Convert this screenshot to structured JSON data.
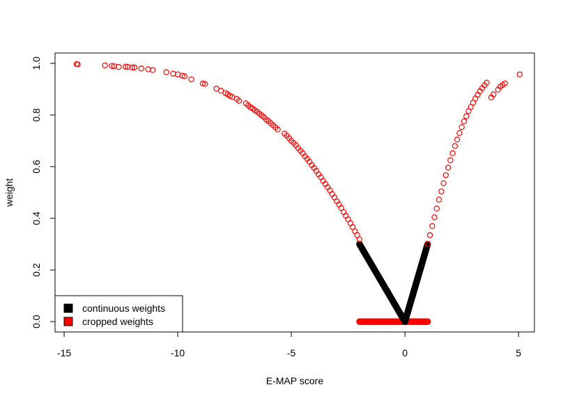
{
  "chart_data": {
    "type": "scatter",
    "title": "",
    "xlabel": "E-MAP score",
    "ylabel": "weight",
    "xlim": [
      -15.4,
      5.7
    ],
    "ylim": [
      -0.04,
      1.04
    ],
    "xticks": [
      -15,
      -10,
      -5,
      0,
      5
    ],
    "xtick_labels": [
      "-15",
      "-10",
      "-5",
      "0",
      "5"
    ],
    "yticks": [
      0.0,
      0.2,
      0.4,
      0.6,
      0.8,
      1.0
    ],
    "ytick_labels": [
      "0.0",
      "0.2",
      "0.4",
      "0.6",
      "0.8",
      "1.0"
    ],
    "legend_position": "bottom-left",
    "grid": false,
    "series": [
      {
        "name": "continuous weights",
        "color": "#000000",
        "marker": "dense-filled",
        "segments": [
          {
            "x": [
              -2.0,
              0.0
            ],
            "y": [
              0.3,
              0.0
            ]
          },
          {
            "x": [
              0.0,
              1.0
            ],
            "y": [
              0.0,
              0.3
            ]
          }
        ]
      },
      {
        "name": "cropped weights",
        "color": "#ff0000",
        "marker": "open-circle",
        "x": [
          -14.45,
          -14.4,
          -13.2,
          -12.9,
          -12.8,
          -12.6,
          -12.3,
          -12.2,
          -12.0,
          -11.9,
          -11.6,
          -11.3,
          -11.1,
          -10.5,
          -10.2,
          -10.0,
          -9.8,
          -9.7,
          -9.4,
          -8.9,
          -8.8,
          -8.3,
          -8.1,
          -7.9,
          -7.8,
          -7.7,
          -7.6,
          -7.4,
          -7.3,
          -7.0,
          -6.9,
          -6.8,
          -6.7,
          -6.6,
          -6.5,
          -6.4,
          -6.3,
          -6.2,
          -6.1,
          -6.0,
          -5.9,
          -5.8,
          -5.7,
          -5.6,
          -5.3,
          -5.2,
          -5.1,
          -5.0,
          -4.9,
          -4.8,
          -4.7,
          -4.6,
          -4.5,
          -4.4,
          -4.3,
          -4.2,
          -4.1,
          -4.0,
          -3.9,
          -3.8,
          -3.7,
          -3.6,
          -3.5,
          -3.4,
          -3.3,
          -3.2,
          -3.1,
          -3.0,
          -2.9,
          -2.8,
          -2.7,
          -2.6,
          -2.5,
          -2.4,
          -2.3,
          -2.2,
          -2.1,
          -2.0,
          1.0,
          1.1,
          1.2,
          1.3,
          1.4,
          1.5,
          1.6,
          1.7,
          1.8,
          1.9,
          2.0,
          2.1,
          2.2,
          2.3,
          2.4,
          2.5,
          2.6,
          2.7,
          2.8,
          2.9,
          3.0,
          3.1,
          3.2,
          3.3,
          3.4,
          3.5,
          3.6,
          3.8,
          3.9,
          4.1,
          4.2,
          4.3,
          4.4,
          5.05
        ],
        "y": [
          0.997,
          0.996,
          0.992,
          0.99,
          0.989,
          0.986,
          0.987,
          0.986,
          0.984,
          0.984,
          0.98,
          0.977,
          0.974,
          0.966,
          0.96,
          0.957,
          0.952,
          0.95,
          0.938,
          0.922,
          0.92,
          0.902,
          0.894,
          0.885,
          0.88,
          0.874,
          0.87,
          0.862,
          0.855,
          0.845,
          0.838,
          0.83,
          0.825,
          0.818,
          0.812,
          0.805,
          0.798,
          0.791,
          0.782,
          0.776,
          0.768,
          0.76,
          0.752,
          0.744,
          0.728,
          0.72,
          0.71,
          0.7,
          0.692,
          0.683,
          0.672,
          0.662,
          0.652,
          0.64,
          0.63,
          0.619,
          0.606,
          0.595,
          0.584,
          0.57,
          0.559,
          0.545,
          0.533,
          0.52,
          0.508,
          0.494,
          0.481,
          0.466,
          0.454,
          0.44,
          0.424,
          0.41,
          0.396,
          0.381,
          0.366,
          0.35,
          0.335,
          0.318,
          0.3,
          0.335,
          0.37,
          0.404,
          0.438,
          0.472,
          0.504,
          0.536,
          0.567,
          0.596,
          0.625,
          0.652,
          0.68,
          0.705,
          0.73,
          0.753,
          0.775,
          0.795,
          0.815,
          0.831,
          0.848,
          0.864,
          0.878,
          0.892,
          0.904,
          0.915,
          0.925,
          0.868,
          0.88,
          0.898,
          0.91,
          0.916,
          0.922,
          0.957
        ]
      },
      {
        "name": "cropped weights (zero band)",
        "color": "#ff0000",
        "marker": "dense-filled",
        "x_range": [
          -2.0,
          1.0
        ],
        "y_value": 0.0
      }
    ]
  }
}
